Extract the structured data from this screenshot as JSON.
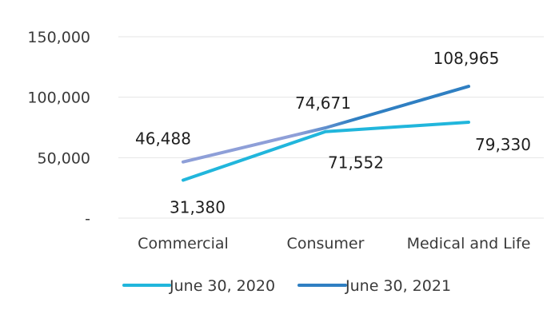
{
  "chart_data": {
    "type": "line",
    "categories": [
      "Commercial",
      "Consumer",
      "Medical and Life"
    ],
    "series": [
      {
        "name": "June 30, 2020",
        "values": [
          31380,
          71552,
          79330
        ],
        "labels": [
          "31,380",
          "71,552",
          "79,330"
        ],
        "color": "#21b6dc"
      },
      {
        "name": "June 30, 2021",
        "values": [
          46488,
          74671,
          108965
        ],
        "labels": [
          "46,488",
          "74,671",
          "108,965"
        ],
        "color": "#2f7fc2",
        "start_color": "#8e9fd8"
      }
    ],
    "yticks": [
      {
        "value": 0,
        "label": "-"
      },
      {
        "value": 50000,
        "label": "50,000"
      },
      {
        "value": 100000,
        "label": "100,000"
      },
      {
        "value": 150000,
        "label": "150,000"
      }
    ],
    "ylim": [
      0,
      150000
    ],
    "grid": true,
    "legend": "bottom",
    "title": "",
    "xlabel": "",
    "ylabel": ""
  }
}
